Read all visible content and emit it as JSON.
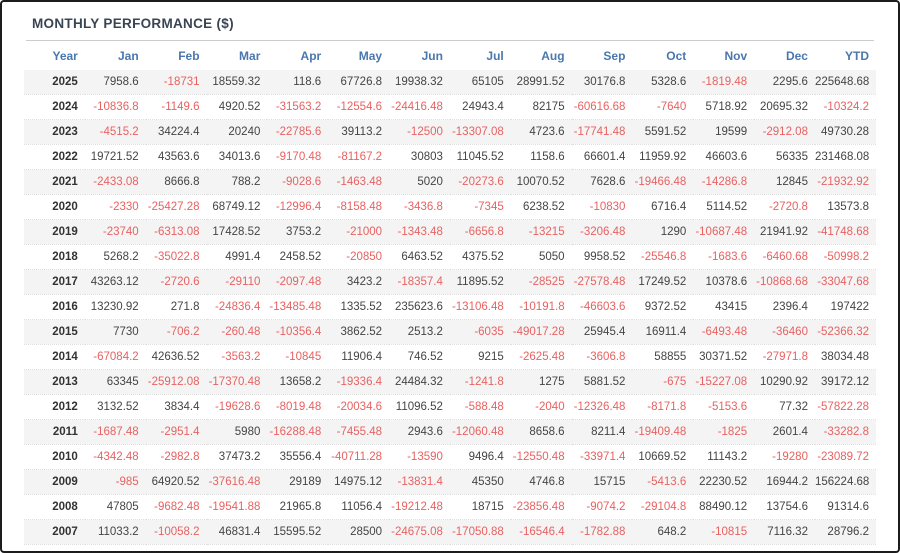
{
  "panel": {
    "title": "MONTHLY PERFORMANCE ($)"
  },
  "colors": {
    "negative_value": "#e86161",
    "positive_value": "#444444",
    "header_text": "#4a77ad",
    "title_text": "#3a4554",
    "row_stripe": "#f4f4f4",
    "frame_border": "#1c1c1c"
  },
  "table": {
    "columns": [
      "Year",
      "Jan",
      "Feb",
      "Mar",
      "Apr",
      "May",
      "Jun",
      "Jul",
      "Aug",
      "Sep",
      "Oct",
      "Nov",
      "Dec",
      "YTD"
    ],
    "rows": [
      {
        "year": "2025",
        "values": [
          "7958.6",
          "-18731",
          "18559.32",
          "118.6",
          "67726.8",
          "19938.32",
          "65105",
          "28991.52",
          "30176.8",
          "5328.6",
          "-1819.48",
          "2295.6",
          "225648.68"
        ]
      },
      {
        "year": "2024",
        "values": [
          "-10836.8",
          "-1149.6",
          "4920.52",
          "-31563.2",
          "-12554.6",
          "-24416.48",
          "24943.4",
          "82175",
          "-60616.68",
          "-7640",
          "5718.92",
          "20695.32",
          "-10324.2"
        ]
      },
      {
        "year": "2023",
        "values": [
          "-4515.2",
          "34224.4",
          "20240",
          "-22785.6",
          "39113.2",
          "-12500",
          "-13307.08",
          "4723.6",
          "-17741.48",
          "5591.52",
          "19599",
          "-2912.08",
          "49730.28"
        ]
      },
      {
        "year": "2022",
        "values": [
          "19721.52",
          "43563.6",
          "34013.6",
          "-9170.48",
          "-81167.2",
          "30803",
          "11045.52",
          "1158.6",
          "66601.4",
          "11959.92",
          "46603.6",
          "56335",
          "231468.08"
        ]
      },
      {
        "year": "2021",
        "values": [
          "-2433.08",
          "8666.8",
          "788.2",
          "-9028.6",
          "-1463.48",
          "5020",
          "-20273.6",
          "10070.52",
          "7628.6",
          "-19466.48",
          "-14286.8",
          "12845",
          "-21932.92"
        ]
      },
      {
        "year": "2020",
        "values": [
          "-2330",
          "-25427.28",
          "68749.12",
          "-12996.4",
          "-8158.48",
          "-3436.8",
          "-7345",
          "6238.52",
          "-10830",
          "6716.4",
          "5114.52",
          "-2720.8",
          "13573.8"
        ]
      },
      {
        "year": "2019",
        "values": [
          "-23740",
          "-6313.08",
          "17428.52",
          "3753.2",
          "-21000",
          "-1343.48",
          "-6656.8",
          "-13215",
          "-3206.48",
          "1290",
          "-10687.48",
          "21941.92",
          "-41748.68"
        ]
      },
      {
        "year": "2018",
        "values": [
          "5268.2",
          "-35022.8",
          "4991.4",
          "2458.52",
          "-20850",
          "6463.52",
          "4375.52",
          "5050",
          "9958.52",
          "-25546.8",
          "-1683.6",
          "-6460.68",
          "-50998.2"
        ]
      },
      {
        "year": "2017",
        "values": [
          "43263.12",
          "-2720.6",
          "-29110",
          "-2097.48",
          "3423.2",
          "-18357.4",
          "11895.52",
          "-28525",
          "-27578.48",
          "17249.52",
          "10378.6",
          "-10868.68",
          "-33047.68"
        ]
      },
      {
        "year": "2016",
        "values": [
          "13230.92",
          "271.8",
          "-24836.4",
          "-13485.48",
          "1335.52",
          "235623.6",
          "-13106.48",
          "-10191.8",
          "-46603.6",
          "9372.52",
          "43415",
          "2396.4",
          "197422"
        ]
      },
      {
        "year": "2015",
        "values": [
          "7730",
          "-706.2",
          "-260.48",
          "-10356.4",
          "3862.52",
          "2513.2",
          "-6035",
          "-49017.28",
          "25945.4",
          "16911.4",
          "-6493.48",
          "-36460",
          "-52366.32"
        ]
      },
      {
        "year": "2014",
        "values": [
          "-67084.2",
          "42636.52",
          "-3563.2",
          "-10845",
          "11906.4",
          "746.52",
          "9215",
          "-2625.48",
          "-3606.8",
          "58855",
          "30371.52",
          "-27971.8",
          "38034.48"
        ]
      },
      {
        "year": "2013",
        "values": [
          "63345",
          "-25912.08",
          "-17370.48",
          "13658.2",
          "-19336.4",
          "24484.32",
          "-1241.8",
          "1275",
          "5881.52",
          "-675",
          "-15227.08",
          "10290.92",
          "39172.12"
        ]
      },
      {
        "year": "2012",
        "values": [
          "3132.52",
          "3834.4",
          "-19628.6",
          "-8019.48",
          "-20034.6",
          "11096.52",
          "-588.48",
          "-2040",
          "-12326.48",
          "-8171.8",
          "-5153.6",
          "77.32",
          "-57822.28"
        ]
      },
      {
        "year": "2011",
        "values": [
          "-1687.48",
          "-2951.4",
          "5980",
          "-16288.48",
          "-7455.48",
          "2943.6",
          "-12060.48",
          "8658.6",
          "8211.4",
          "-19409.48",
          "-1825",
          "2601.4",
          "-33282.8"
        ]
      },
      {
        "year": "2010",
        "values": [
          "-4342.48",
          "-2982.8",
          "37473.2",
          "35556.4",
          "-40711.28",
          "-13590",
          "9496.4",
          "-12550.48",
          "-33971.4",
          "10669.52",
          "11143.2",
          "-19280",
          "-23089.72"
        ]
      },
      {
        "year": "2009",
        "values": [
          "-985",
          "64920.52",
          "-37616.48",
          "29189",
          "14975.12",
          "-13831.4",
          "45350",
          "4746.8",
          "15715",
          "-5413.6",
          "22230.52",
          "16944.2",
          "156224.68"
        ]
      },
      {
        "year": "2008",
        "values": [
          "47805",
          "-9682.48",
          "-19541.88",
          "21965.8",
          "11056.4",
          "-19212.48",
          "18715",
          "-23856.48",
          "-9074.2",
          "-29104.8",
          "88490.12",
          "13754.6",
          "91314.6"
        ]
      },
      {
        "year": "2007",
        "values": [
          "11033.2",
          "-10058.2",
          "46831.4",
          "15595.52",
          "28500",
          "-24675.08",
          "-17050.88",
          "-16546.4",
          "-1782.88",
          "648.2",
          "-10815",
          "7116.32",
          "28796.2"
        ]
      }
    ]
  }
}
